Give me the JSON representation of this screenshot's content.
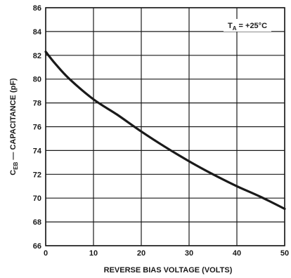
{
  "chart_data": {
    "type": "line",
    "title": "",
    "xlabel": "REVERSE BIAS VOLTAGE (VOLTS)",
    "ylabel": {
      "symbol": "C",
      "subscript": "EB",
      "text": " — CAPACITANCE (pF)"
    },
    "annotation": {
      "symbol": "T",
      "subscript": "A",
      "text": " = +25°C"
    },
    "xlim": [
      0,
      50
    ],
    "ylim": [
      66,
      86
    ],
    "xticks": [
      0,
      10,
      20,
      30,
      40,
      50
    ],
    "yticks": [
      66,
      68,
      70,
      72,
      74,
      76,
      78,
      80,
      82,
      84,
      86
    ],
    "grid": true,
    "colors": {
      "line": "#1a1a1a",
      "grid": "#1a1a1a"
    },
    "series": [
      {
        "x": [
          0,
          2,
          5,
          10,
          15,
          20,
          25,
          30,
          35,
          40,
          45,
          50
        ],
        "values": [
          82.3,
          81.3,
          80.0,
          78.3,
          77.0,
          75.6,
          74.3,
          73.1,
          72.0,
          71.0,
          70.1,
          69.1
        ]
      }
    ]
  }
}
